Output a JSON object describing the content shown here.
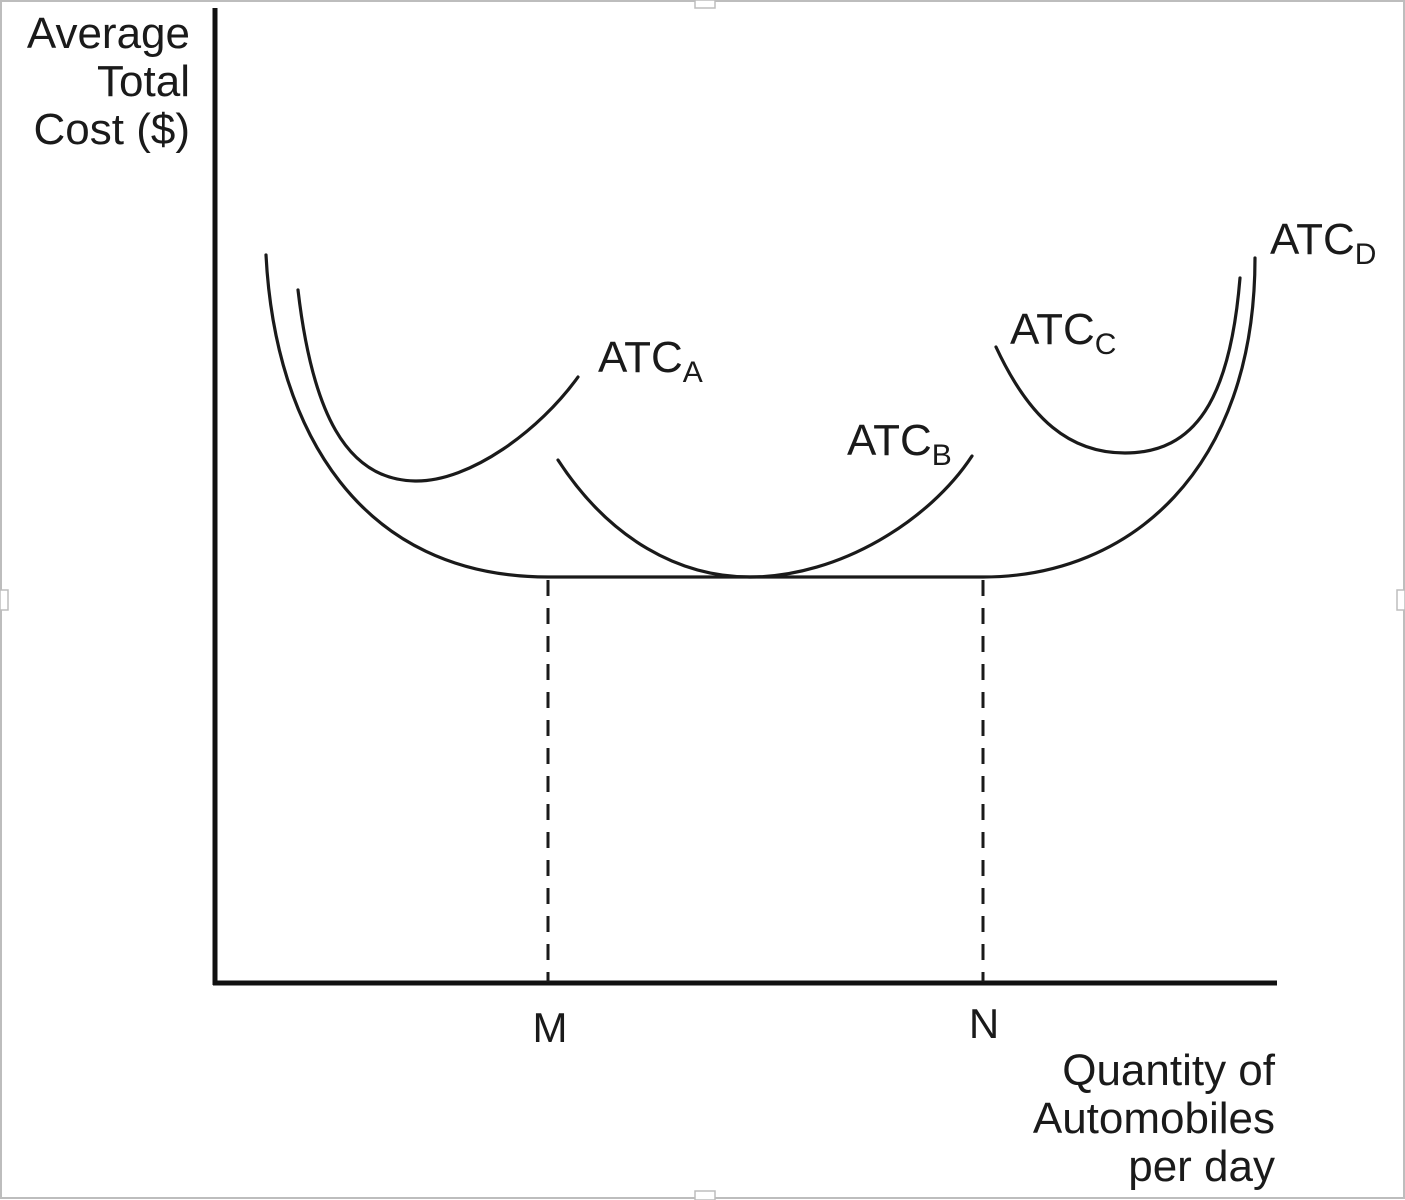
{
  "diagram": {
    "y_axis_title": [
      "Average",
      "Total",
      "Cost ($)"
    ],
    "x_axis_title": [
      "Quantity of",
      "Automobiles",
      "per day"
    ],
    "x_ticks": [
      "M",
      "N"
    ],
    "curves": [
      {
        "id": "A",
        "label": "ATC",
        "subscript": "A"
      },
      {
        "id": "B",
        "label": "ATC",
        "subscript": "B"
      },
      {
        "id": "C",
        "label": "ATC",
        "subscript": "C"
      },
      {
        "id": "D",
        "label": "ATC",
        "subscript": "D"
      }
    ],
    "colors": {
      "ink": "#1a1a1a",
      "background": "#ffffff",
      "frame_border": "#bdbdbd"
    }
  }
}
